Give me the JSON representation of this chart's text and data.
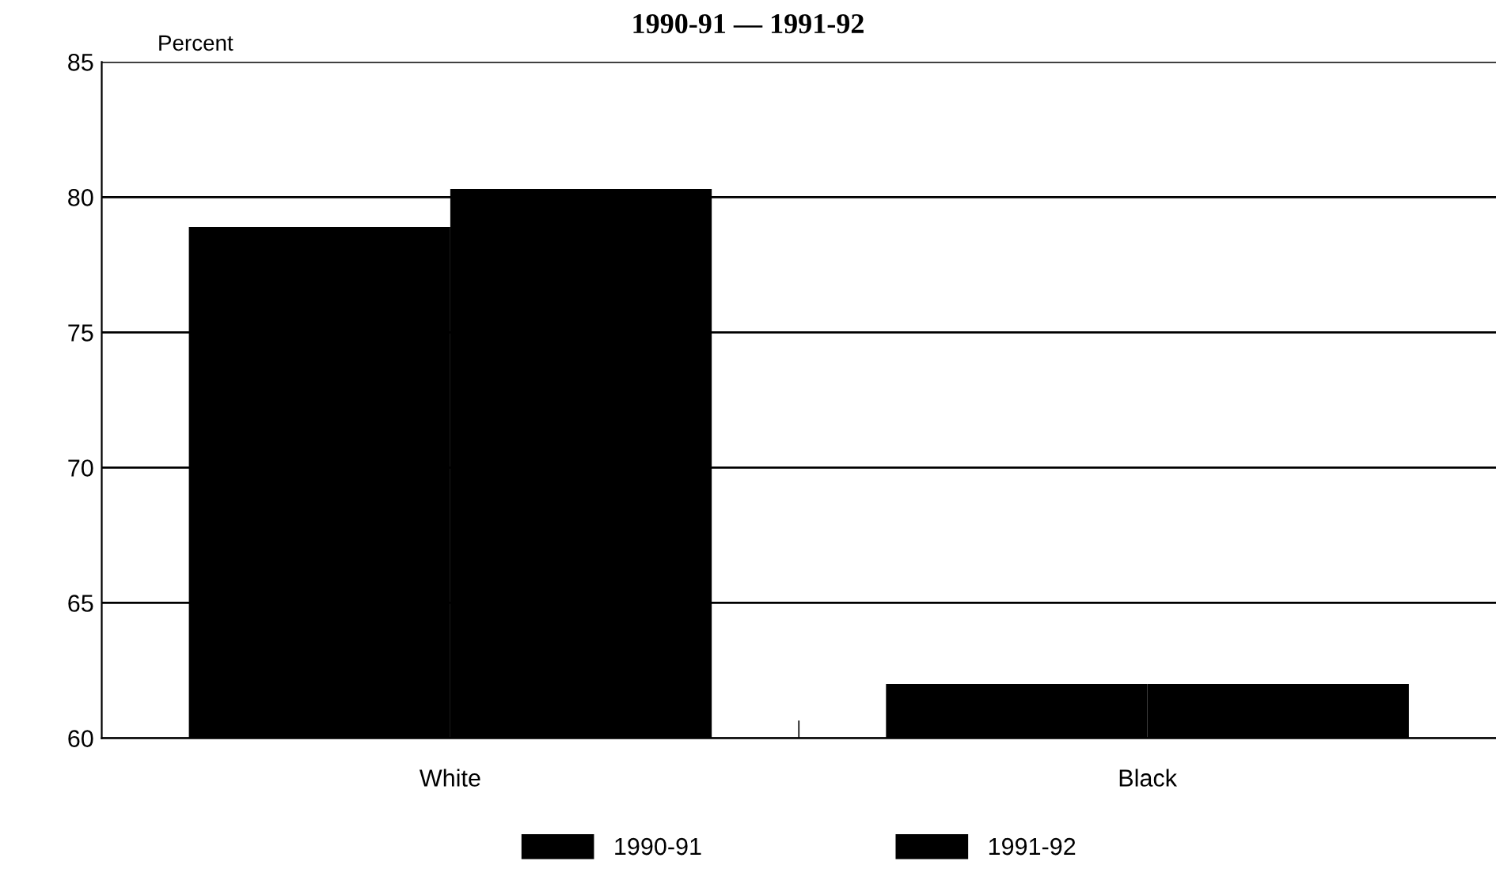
{
  "chart_data": {
    "type": "bar",
    "title": "1990-91 — 1991-92",
    "ylabel": "Percent",
    "categories": [
      "White",
      "Black"
    ],
    "series": [
      {
        "name": "1990-91",
        "color": "#000000",
        "values": [
          78.9,
          62.0
        ]
      },
      {
        "name": "1991-92",
        "color": "#000000",
        "values": [
          80.3,
          62.0
        ]
      }
    ],
    "ylim": [
      60,
      85
    ],
    "yticks": [
      60,
      65,
      70,
      75,
      80,
      85
    ],
    "grid": "y",
    "legend": "bottom"
  }
}
